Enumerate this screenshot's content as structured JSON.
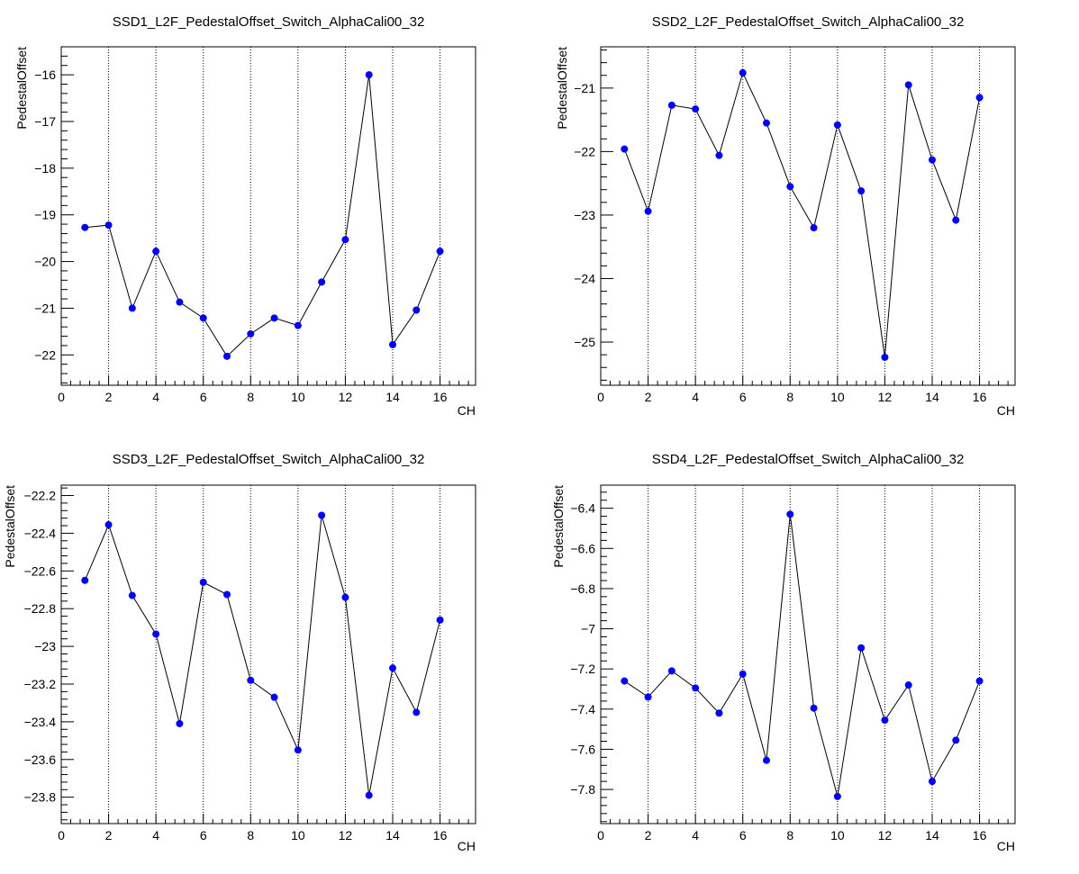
{
  "chart_data": [
    {
      "type": "line",
      "title": "SSD1_L2F_PedestalOffset_Switch_AlphaCali00_32",
      "xlabel": "CH",
      "ylabel": "PedestalOffset",
      "xlim": [
        0,
        17.5
      ],
      "ylim": [
        -22.65,
        -15.4
      ],
      "xticks": [
        0,
        2,
        4,
        6,
        8,
        10,
        12,
        14,
        16
      ],
      "yticks": [
        -22,
        -21,
        -20,
        -19,
        -18,
        -17,
        -16
      ],
      "ytick_labels": [
        "−22",
        "−21",
        "−20",
        "−19",
        "−18",
        "−17",
        "−16"
      ],
      "grid_x": true,
      "grid_y": false,
      "x": [
        1,
        2,
        3,
        4,
        5,
        6,
        7,
        8,
        9,
        10,
        11,
        12,
        13,
        14,
        15,
        16
      ],
      "y": [
        -19.27,
        -19.22,
        -21.0,
        -19.78,
        -20.87,
        -21.21,
        -22.03,
        -21.55,
        -21.21,
        -21.37,
        -20.44,
        -19.53,
        -16.0,
        -21.78,
        -21.04,
        -19.78
      ],
      "marker_color": "#0000ff",
      "line_color": "#000000"
    },
    {
      "type": "line",
      "title": "SSD2_L2F_PedestalOffset_Switch_AlphaCali00_32",
      "xlabel": "CH",
      "ylabel": "PedestalOffset",
      "xlim": [
        0,
        17.5
      ],
      "ylim": [
        -25.68,
        -20.35
      ],
      "xticks": [
        0,
        2,
        4,
        6,
        8,
        10,
        12,
        14,
        16
      ],
      "yticks": [
        -25,
        -24,
        -23,
        -22,
        -21
      ],
      "ytick_labels": [
        "−25",
        "−24",
        "−23",
        "−22",
        "−21"
      ],
      "grid_x": true,
      "grid_y": false,
      "x": [
        1,
        2,
        3,
        4,
        5,
        6,
        7,
        8,
        9,
        10,
        11,
        12,
        13,
        14,
        15,
        16
      ],
      "y": [
        -21.96,
        -22.94,
        -21.27,
        -21.33,
        -22.06,
        -20.76,
        -21.55,
        -22.55,
        -23.2,
        -21.58,
        -22.62,
        -25.24,
        -20.95,
        -22.13,
        -23.08,
        -21.15
      ],
      "marker_color": "#0000ff",
      "line_color": "#000000"
    },
    {
      "type": "line",
      "title": "SSD3_L2F_PedestalOffset_Switch_AlphaCali00_32",
      "xlabel": "CH",
      "ylabel": "PedestalOffset",
      "xlim": [
        0,
        17.5
      ],
      "ylim": [
        -23.94,
        -22.145
      ],
      "xticks": [
        0,
        2,
        4,
        6,
        8,
        10,
        12,
        14,
        16
      ],
      "yticks": [
        -23.8,
        -23.6,
        -23.4,
        -23.2,
        -23.0,
        -22.8,
        -22.6,
        -22.4,
        -22.2
      ],
      "ytick_labels": [
        "−23.8",
        "−23.6",
        "−23.4",
        "−23.2",
        "−23",
        "−22.8",
        "−22.6",
        "−22.4",
        "−22.2"
      ],
      "grid_x": true,
      "grid_y": false,
      "x": [
        1,
        2,
        3,
        4,
        5,
        6,
        7,
        8,
        9,
        10,
        11,
        12,
        13,
        14,
        15,
        16
      ],
      "y": [
        -22.65,
        -22.355,
        -22.73,
        -22.935,
        -23.41,
        -22.66,
        -22.725,
        -23.18,
        -23.27,
        -23.55,
        -22.305,
        -22.74,
        -23.79,
        -23.115,
        -23.35,
        -22.86
      ],
      "marker_color": "#0000ff",
      "line_color": "#000000"
    },
    {
      "type": "line",
      "title": "SSD4_L2F_PedestalOffset_Switch_AlphaCali00_32",
      "xlabel": "CH",
      "ylabel": "PedestalOffset",
      "xlim": [
        0,
        17.5
      ],
      "ylim": [
        -7.97,
        -6.285
      ],
      "xticks": [
        0,
        2,
        4,
        6,
        8,
        10,
        12,
        14,
        16
      ],
      "yticks": [
        -7.8,
        -7.6,
        -7.4,
        -7.2,
        -7.0,
        -6.8,
        -6.6,
        -6.4
      ],
      "ytick_labels": [
        "−7.8",
        "−7.6",
        "−7.4",
        "−7.2",
        "−7",
        "−6.8",
        "−6.6",
        "−6.4"
      ],
      "grid_x": true,
      "grid_y": false,
      "x": [
        1,
        2,
        3,
        4,
        5,
        6,
        7,
        8,
        9,
        10,
        11,
        12,
        13,
        14,
        15,
        16
      ],
      "y": [
        -7.26,
        -7.34,
        -7.21,
        -7.295,
        -7.42,
        -7.225,
        -7.655,
        -6.43,
        -7.395,
        -7.835,
        -7.095,
        -7.455,
        -7.28,
        -7.76,
        -7.555,
        -7.26
      ],
      "marker_color": "#0000ff",
      "line_color": "#000000"
    }
  ]
}
